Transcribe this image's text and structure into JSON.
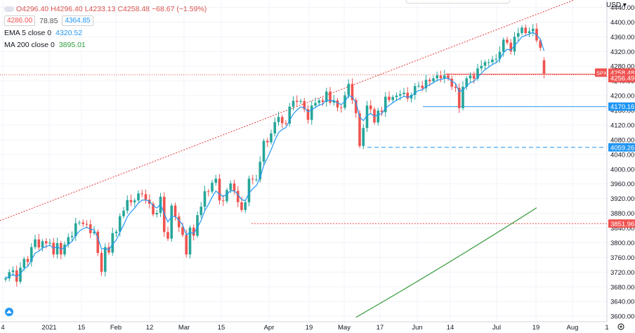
{
  "ohlc": {
    "open": "O4296.40",
    "high": "H4296.40",
    "low": "L4233.13",
    "close": "C4258.48",
    "change": "−68.67 (−1.59%)"
  },
  "bid": "4286.00",
  "spread": "78.85",
  "ask": "4364.85",
  "indicators": [
    {
      "label": "EMA 5 close 0",
      "value": "4320.52",
      "color": "#2196f3"
    },
    {
      "label": "MA 200 close 0",
      "value": "3895.01",
      "color": "#43a047"
    }
  ],
  "currency_label": "USD",
  "colors": {
    "up": "#26a69a",
    "down": "#ef5350",
    "ema": "#2196f3",
    "ma": "#43a047",
    "trend": "#e53935",
    "grid": "#f0f3fa"
  },
  "chart_data": {
    "type": "candlestick",
    "symbol": "SPX",
    "y_ticks": [
      3600,
      3640,
      3680,
      3720,
      3760,
      3800,
      3840,
      3880,
      3920,
      3960,
      4000,
      4040,
      4080,
      4120,
      4160,
      4200,
      4240,
      4280,
      4320,
      4360,
      4400,
      4440
    ],
    "ylim": [
      3585,
      4460
    ],
    "x_ticks": [
      "4",
      "2021",
      "15",
      "Feb",
      "12",
      "Mar",
      "15",
      "Apr",
      "19",
      "May",
      "17",
      "Jun",
      "14",
      "Jul",
      "19",
      "Aug",
      "1"
    ],
    "closes": [
      3703,
      3720,
      3725,
      3694,
      3732,
      3756,
      3748,
      3788,
      3809,
      3787,
      3804,
      3798,
      3800,
      3768,
      3799,
      3768,
      3795,
      3815,
      3818,
      3853,
      3855,
      3851,
      3850,
      3826,
      3830,
      3772,
      3721,
      3788,
      3773,
      3826,
      3830,
      3872,
      3887,
      3916,
      3910,
      3915,
      3934,
      3932,
      3917,
      3906,
      3877,
      3881,
      3925,
      3829,
      3811,
      3901,
      3871,
      3842,
      3821,
      3768,
      3841,
      3819,
      3875,
      3898,
      3940,
      3939,
      3963,
      3974,
      3915,
      3913,
      3943,
      3961,
      3941,
      3910,
      3889,
      3910,
      3974,
      3972,
      3972,
      4020,
      4077,
      4073,
      4097,
      4128,
      4142,
      4125,
      4124,
      4170,
      4186,
      4183,
      4185,
      4163,
      4134,
      4173,
      4180,
      4187,
      4183,
      4211,
      4181,
      4187,
      4168,
      4167,
      4201,
      4232,
      4188,
      4152,
      4063,
      4112,
      4173,
      4163,
      4127,
      4159,
      4155,
      4197,
      4188,
      4196,
      4200,
      4204,
      4208,
      4192,
      4202,
      4226,
      4227,
      4220,
      4243,
      4239,
      4247,
      4255,
      4247,
      4255,
      4246,
      4224,
      4221,
      4166,
      4224,
      4247,
      4255,
      4246,
      4274,
      4281,
      4291,
      4291,
      4298,
      4300,
      4319,
      4352,
      4344,
      4320,
      4360,
      4370,
      4385,
      4370,
      4375,
      4382,
      4350,
      4330,
      4258
    ],
    "opens": [
      3700,
      3703,
      3720,
      3725,
      3694,
      3732,
      3756,
      3748,
      3788,
      3809,
      3787,
      3804,
      3798,
      3800,
      3768,
      3799,
      3768,
      3795,
      3815,
      3818,
      3853,
      3855,
      3851,
      3850,
      3826,
      3830,
      3772,
      3721,
      3788,
      3773,
      3826,
      3830,
      3872,
      3887,
      3916,
      3910,
      3915,
      3934,
      3932,
      3917,
      3906,
      3877,
      3881,
      3925,
      3829,
      3811,
      3901,
      3871,
      3842,
      3821,
      3768,
      3841,
      3819,
      3875,
      3898,
      3940,
      3939,
      3963,
      3974,
      3915,
      3913,
      3943,
      3961,
      3941,
      3910,
      3889,
      3910,
      3974,
      3972,
      3972,
      4020,
      4077,
      4073,
      4097,
      4128,
      4142,
      4125,
      4124,
      4170,
      4186,
      4183,
      4185,
      4163,
      4134,
      4173,
      4180,
      4187,
      4183,
      4211,
      4181,
      4187,
      4168,
      4167,
      4201,
      4232,
      4188,
      4152,
      4063,
      4112,
      4173,
      4163,
      4127,
      4159,
      4155,
      4197,
      4188,
      4196,
      4200,
      4204,
      4208,
      4192,
      4202,
      4226,
      4227,
      4220,
      4243,
      4239,
      4247,
      4255,
      4247,
      4255,
      4246,
      4224,
      4221,
      4166,
      4224,
      4247,
      4255,
      4246,
      4274,
      4281,
      4291,
      4291,
      4298,
      4300,
      4319,
      4352,
      4344,
      4320,
      4360,
      4370,
      4385,
      4370,
      4375,
      4382,
      4350,
      4296
    ],
    "ma200": {
      "x_start": 95,
      "values_start": 3597,
      "x_end": 144,
      "values_end": 3895
    },
    "trendline": {
      "from": [
        0,
        3860
      ],
      "to": [
        144,
        4446
      ]
    },
    "price_lines": [
      {
        "label": "SPX",
        "value": "4258.48",
        "color": "#ef5350",
        "style": "solid"
      },
      {
        "label": "",
        "value": "4256.49",
        "color": "#ef5350",
        "style": "dotted"
      },
      {
        "label": "",
        "value": "4170.16",
        "color": "#2196f3",
        "style": "solid"
      },
      {
        "label": "",
        "value": "4059.26",
        "color": "#2196f3",
        "style": "dashed"
      },
      {
        "label": "",
        "value": "3851.96",
        "color": "#ef5350",
        "style": "dotted"
      }
    ]
  }
}
